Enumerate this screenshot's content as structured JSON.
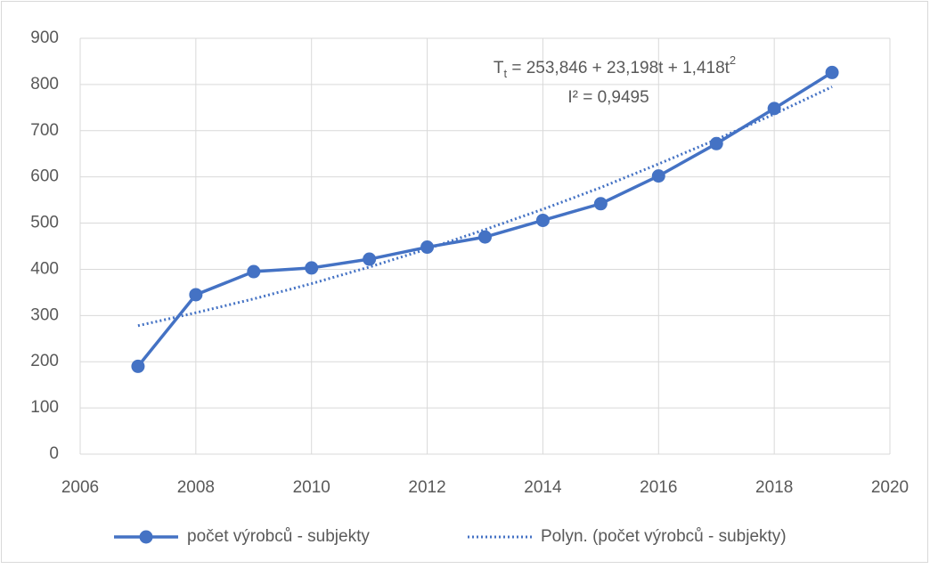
{
  "chart_data": {
    "type": "line",
    "x": [
      2007,
      2008,
      2009,
      2010,
      2011,
      2012,
      2013,
      2014,
      2015,
      2016,
      2017,
      2018,
      2019
    ],
    "series": [
      {
        "name": "počet výrobců - subjekty",
        "color": "#4472c4",
        "style": "solid",
        "markers": true,
        "values": [
          190,
          345,
          395,
          403,
          422,
          448,
          470,
          506,
          542,
          602,
          672,
          748,
          826
        ]
      },
      {
        "name": "Polyn. (počet výrobců - subjekty)",
        "color": "#4472c4",
        "style": "dotted",
        "markers": false,
        "values": [
          278,
          306,
          336,
          369,
          405,
          444,
          486,
          530,
          577,
          628,
          681,
          736,
          795
        ]
      }
    ],
    "xlim": [
      2006,
      2020
    ],
    "xticks": [
      2006,
      2008,
      2010,
      2012,
      2014,
      2016,
      2018,
      2020
    ],
    "ylim": [
      0,
      900
    ],
    "yticks": [
      0,
      100,
      200,
      300,
      400,
      500,
      600,
      700,
      800,
      900
    ],
    "grid": true,
    "legend": "bottom",
    "annotation": {
      "equation": [
        "T",
        "t",
        " = 253,846 + 23,198t + 1,418t",
        "2"
      ],
      "r2": "I² = 0,9495"
    }
  }
}
